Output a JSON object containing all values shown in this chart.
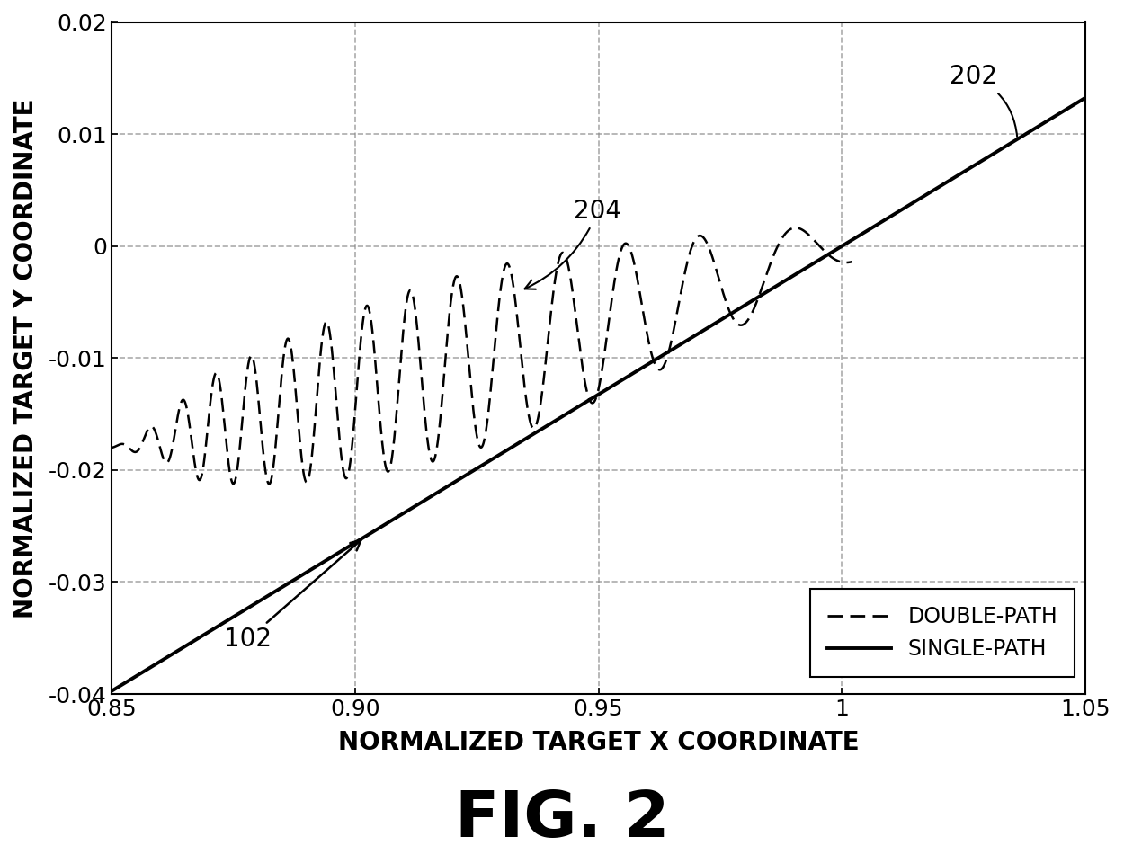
{
  "xlim": [
    0.85,
    1.05
  ],
  "ylim": [
    -0.04,
    0.02
  ],
  "xticks": [
    0.85,
    0.9,
    0.95,
    1.0,
    1.05
  ],
  "yticks": [
    -0.04,
    -0.03,
    -0.02,
    -0.01,
    0.0,
    0.01,
    0.02
  ],
  "xlabel": "NORMALIZED TARGET X COORDINATE",
  "ylabel": "NORMALIZED TARGET Y COORDINATE",
  "fig_label": "FIG. 2",
  "legend_entries": [
    "DOUBLE-PATH",
    "SINGLE-PATH"
  ],
  "background_color": "#ffffff",
  "line_color": "#000000",
  "grid_color": "#888888",
  "title_fontsize": 52,
  "axis_label_fontsize": 20,
  "tick_fontsize": 18,
  "legend_fontsize": 17,
  "annotation_fontsize": 20
}
